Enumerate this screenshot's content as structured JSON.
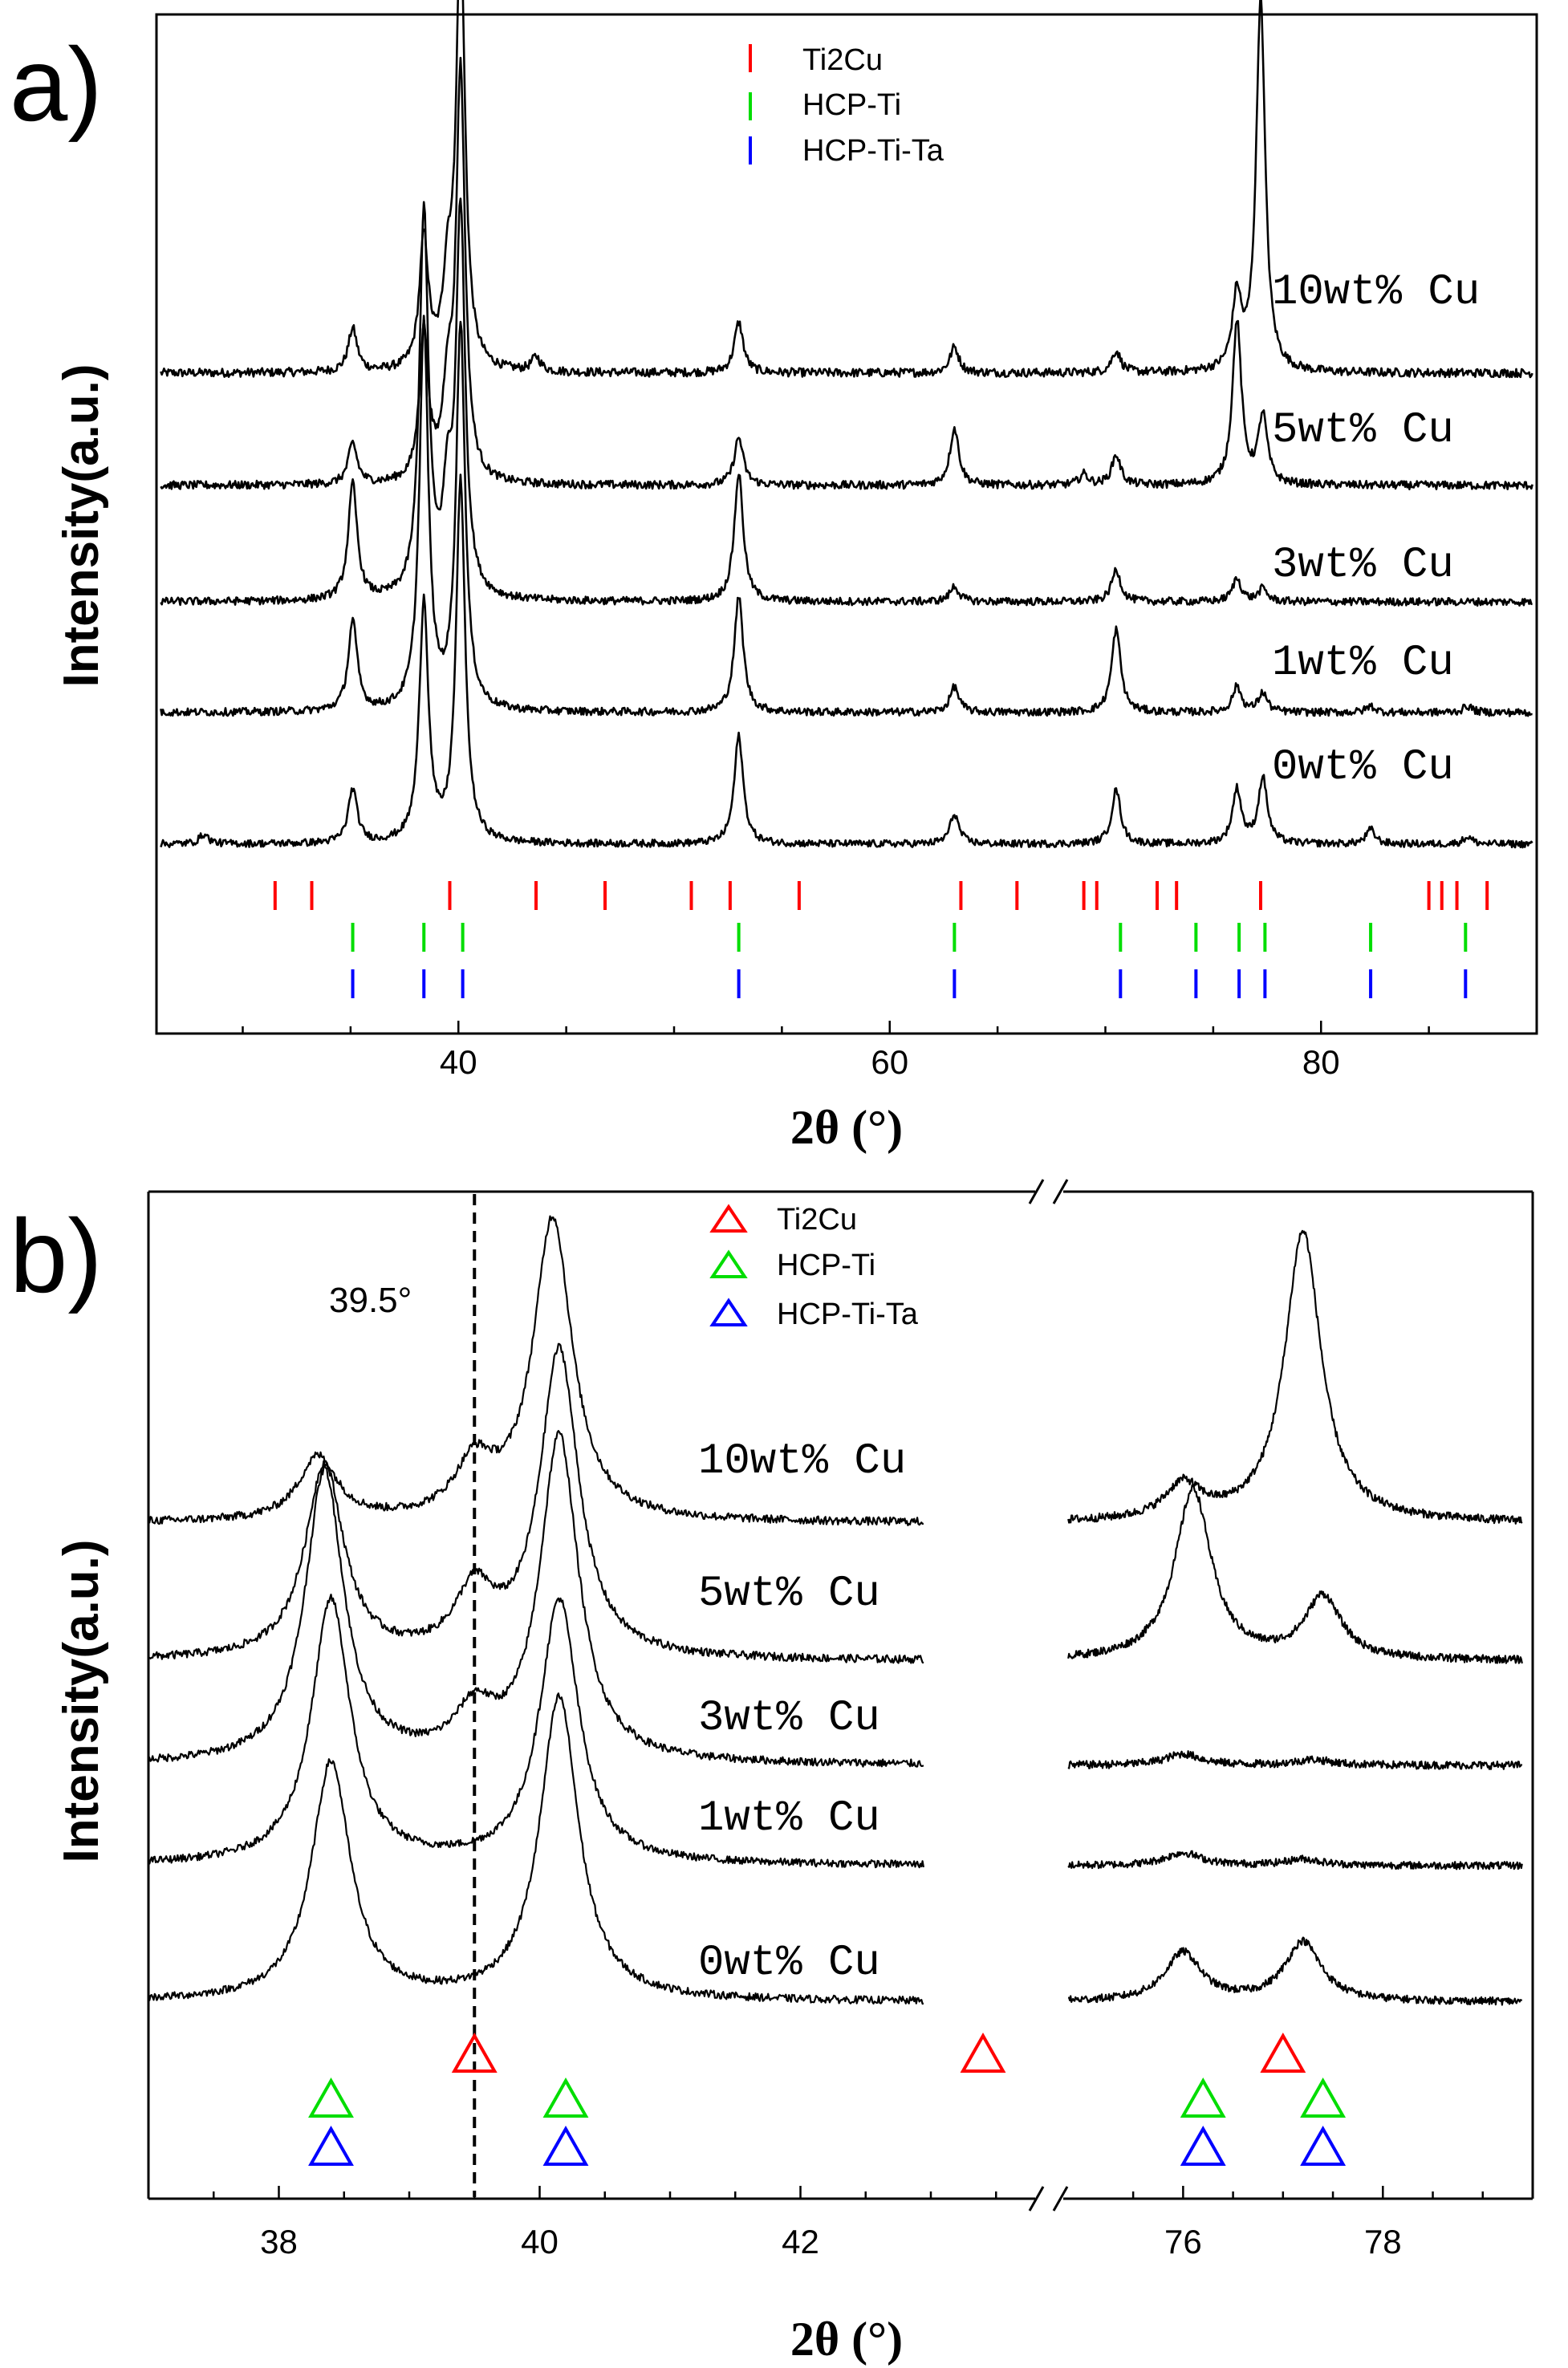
{
  "panel_a": {
    "label": "a)",
    "ylabel": "Intensity(a.u.)",
    "xlabel": "2θ (°)",
    "legend": [
      "Ti2Cu",
      "HCP-Ti",
      "HCP-Ti-Ta"
    ]
  },
  "panel_b": {
    "label": "b)",
    "ylabel": "Intensity(a.u.)",
    "xlabel": "2θ (°)",
    "legend": [
      "Ti2Cu",
      "HCP-Ti",
      "HCP-Ti-Ta"
    ],
    "annotation": "39.5°"
  },
  "chart_data": [
    {
      "type": "line",
      "panel": "a",
      "xlabel": "2θ (°)",
      "ylabel": "Intensity(a.u.)",
      "xlim": [
        26,
        90
      ],
      "xticks": [
        "40",
        "60",
        "80"
      ],
      "xtick_values": [
        40,
        60,
        80
      ],
      "series": [
        {
          "name": "10wt% Cu",
          "peaks": [
            [
              35.1,
              0.3
            ],
            [
              38.4,
              0.9
            ],
            [
              39.5,
              0.55
            ],
            [
              40.1,
              3.0
            ],
            [
              43.6,
              0.1
            ],
            [
              53.0,
              0.35
            ],
            [
              63.0,
              0.18
            ],
            [
              70.5,
              0.15
            ],
            [
              76.1,
              0.5
            ],
            [
              77.2,
              2.6
            ]
          ]
        },
        {
          "name": "5wt% Cu",
          "peaks": [
            [
              35.1,
              0.3
            ],
            [
              38.4,
              1.1
            ],
            [
              39.5,
              0.6
            ],
            [
              40.1,
              3.0
            ],
            [
              53.0,
              0.35
            ],
            [
              63.0,
              0.42
            ],
            [
              69.0,
              0.08
            ],
            [
              70.5,
              0.22
            ],
            [
              76.1,
              1.2
            ],
            [
              77.3,
              0.5
            ]
          ]
        },
        {
          "name": "3wt% Cu",
          "peaks": [
            [
              35.1,
              0.9
            ],
            [
              38.4,
              3.0
            ],
            [
              39.5,
              0.7
            ],
            [
              40.1,
              3.0
            ],
            [
              53.0,
              1.0
            ],
            [
              63.0,
              0.12
            ],
            [
              70.5,
              0.25
            ],
            [
              76.1,
              0.18
            ],
            [
              77.3,
              0.1
            ]
          ]
        },
        {
          "name": "1wt% Cu",
          "peaks": [
            [
              35.1,
              0.7
            ],
            [
              38.4,
              3.0
            ],
            [
              40.1,
              3.0
            ],
            [
              53.0,
              0.9
            ],
            [
              63.0,
              0.2
            ],
            [
              70.5,
              0.65
            ],
            [
              76.1,
              0.2
            ],
            [
              77.3,
              0.15
            ],
            [
              82.3,
              0.05
            ],
            [
              86.8,
              0.05
            ]
          ]
        },
        {
          "name": "0wt% Cu",
          "peaks": [
            [
              28.2,
              0.08
            ],
            [
              35.1,
              0.45
            ],
            [
              38.4,
              2.0
            ],
            [
              40.1,
              3.0
            ],
            [
              53.0,
              0.9
            ],
            [
              63.0,
              0.25
            ],
            [
              70.5,
              0.45
            ],
            [
              76.1,
              0.45
            ],
            [
              77.3,
              0.55
            ],
            [
              82.3,
              0.12
            ],
            [
              86.8,
              0.06
            ]
          ]
        }
      ],
      "reference_markers": {
        "Ti2Cu": [
          31.5,
          33.2,
          39.6,
          43.6,
          46.8,
          50.8,
          52.6,
          55.8,
          63.3,
          65.9,
          69.0,
          69.6,
          72.4,
          73.3,
          77.2,
          85.0,
          85.6,
          86.3,
          87.7
        ],
        "HCP-Ti": [
          35.1,
          38.4,
          40.2,
          53.0,
          63.0,
          70.7,
          74.2,
          76.2,
          77.4,
          82.3,
          86.7
        ],
        "HCP-Ti-Ta": [
          35.1,
          38.4,
          40.2,
          53.0,
          63.0,
          70.7,
          74.2,
          76.2,
          77.4,
          82.3,
          86.7
        ]
      },
      "colors": {
        "Ti2Cu": "#ff0000",
        "HCP-Ti": "#00dd00",
        "HCP-Ti-Ta": "#0000ff"
      }
    },
    {
      "type": "line",
      "panel": "b",
      "xlabel": "2θ (°)",
      "ylabel": "Intensity(a.u.)",
      "xlim_left": [
        37,
        43.8
      ],
      "xlim_right": [
        74.8,
        79.5
      ],
      "axis_break": "//",
      "xticks": [
        "38",
        "40",
        "42",
        "76",
        "78"
      ],
      "xtick_values": [
        38,
        40,
        42,
        76,
        78
      ],
      "series": [
        {
          "name": "10wt% Cu",
          "peaks": [
            [
              38.3,
              0.55
            ],
            [
              39.5,
              0.45
            ],
            [
              40.1,
              2.6
            ],
            [
              76.0,
              0.3
            ],
            [
              77.2,
              2.5
            ]
          ]
        },
        {
          "name": "5wt% Cu",
          "peaks": [
            [
              38.35,
              1.7
            ],
            [
              39.5,
              0.55
            ],
            [
              40.15,
              2.7
            ],
            [
              76.1,
              1.5
            ],
            [
              77.4,
              0.55
            ]
          ]
        },
        {
          "name": "3wt% Cu",
          "peaks": [
            [
              38.35,
              2.6
            ],
            [
              39.5,
              0.4
            ],
            [
              40.15,
              2.9
            ],
            [
              76.0,
              0.1
            ],
            [
              77.3,
              0.05
            ]
          ]
        },
        {
          "name": "1wt% Cu",
          "peaks": [
            [
              38.4,
              2.5
            ],
            [
              40.15,
              2.5
            ],
            [
              76.0,
              0.12
            ],
            [
              77.2,
              0.06
            ]
          ]
        },
        {
          "name": "0wt% Cu",
          "peaks": [
            [
              38.4,
              2.2
            ],
            [
              40.15,
              2.8
            ],
            [
              76.0,
              0.45
            ],
            [
              77.2,
              0.55
            ]
          ]
        }
      ],
      "reference_markers": {
        "Ti2Cu": [
          39.5,
          43.4,
          77.0
        ],
        "HCP-Ti": [
          38.4,
          40.2,
          76.2,
          77.4
        ],
        "HCP-Ti-Ta": [
          38.4,
          40.2,
          76.2,
          77.4
        ]
      },
      "vline": 39.5,
      "colors": {
        "Ti2Cu": "#ff0000",
        "HCP-Ti": "#00dd00",
        "HCP-Ti-Ta": "#0000ff"
      }
    }
  ]
}
